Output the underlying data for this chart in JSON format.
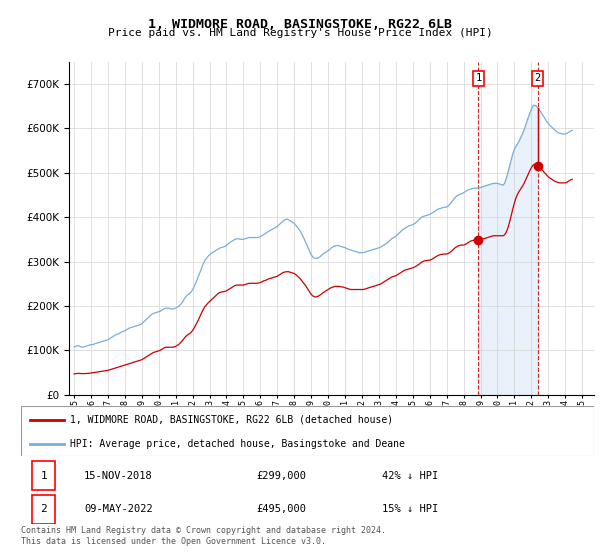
{
  "title": "1, WIDMORE ROAD, BASINGSTOKE, RG22 6LB",
  "subtitle": "Price paid vs. HM Land Registry's House Price Index (HPI)",
  "legend_entry1": "1, WIDMORE ROAD, BASINGSTOKE, RG22 6LB (detached house)",
  "legend_entry2": "HPI: Average price, detached house, Basingstoke and Deane",
  "footnote": "Contains HM Land Registry data © Crown copyright and database right 2024.\nThis data is licensed under the Open Government Licence v3.0.",
  "transaction1_date": "15-NOV-2018",
  "transaction1_price": "£299,000",
  "transaction1_hpi": "42% ↓ HPI",
  "transaction2_date": "09-MAY-2022",
  "transaction2_price": "£495,000",
  "transaction2_hpi": "15% ↓ HPI",
  "hpi_color": "#7aaddc",
  "price_color": "#cc0000",
  "shading_color": "#ddeeff",
  "background_color": "#ffffff",
  "ylim": [
    0,
    750000
  ],
  "yticks": [
    0,
    100000,
    200000,
    300000,
    400000,
    500000,
    600000,
    700000
  ],
  "transaction1_x": 2018.878,
  "transaction2_x": 2022.37,
  "hpi_monthly_dates": [
    1995.0,
    1995.083,
    1995.167,
    1995.25,
    1995.333,
    1995.417,
    1995.5,
    1995.583,
    1995.667,
    1995.75,
    1995.833,
    1995.917,
    1996.0,
    1996.083,
    1996.167,
    1996.25,
    1996.333,
    1996.417,
    1996.5,
    1996.583,
    1996.667,
    1996.75,
    1996.833,
    1996.917,
    1997.0,
    1997.083,
    1997.167,
    1997.25,
    1997.333,
    1997.417,
    1997.5,
    1997.583,
    1997.667,
    1997.75,
    1997.833,
    1997.917,
    1998.0,
    1998.083,
    1998.167,
    1998.25,
    1998.333,
    1998.417,
    1998.5,
    1998.583,
    1998.667,
    1998.75,
    1998.833,
    1998.917,
    1999.0,
    1999.083,
    1999.167,
    1999.25,
    1999.333,
    1999.417,
    1999.5,
    1999.583,
    1999.667,
    1999.75,
    1999.833,
    1999.917,
    2000.0,
    2000.083,
    2000.167,
    2000.25,
    2000.333,
    2000.417,
    2000.5,
    2000.583,
    2000.667,
    2000.75,
    2000.833,
    2000.917,
    2001.0,
    2001.083,
    2001.167,
    2001.25,
    2001.333,
    2001.417,
    2001.5,
    2001.583,
    2001.667,
    2001.75,
    2001.833,
    2001.917,
    2002.0,
    2002.083,
    2002.167,
    2002.25,
    2002.333,
    2002.417,
    2002.5,
    2002.583,
    2002.667,
    2002.75,
    2002.833,
    2002.917,
    2003.0,
    2003.083,
    2003.167,
    2003.25,
    2003.333,
    2003.417,
    2003.5,
    2003.583,
    2003.667,
    2003.75,
    2003.833,
    2003.917,
    2004.0,
    2004.083,
    2004.167,
    2004.25,
    2004.333,
    2004.417,
    2004.5,
    2004.583,
    2004.667,
    2004.75,
    2004.833,
    2004.917,
    2005.0,
    2005.083,
    2005.167,
    2005.25,
    2005.333,
    2005.417,
    2005.5,
    2005.583,
    2005.667,
    2005.75,
    2005.833,
    2005.917,
    2006.0,
    2006.083,
    2006.167,
    2006.25,
    2006.333,
    2006.417,
    2006.5,
    2006.583,
    2006.667,
    2006.75,
    2006.833,
    2006.917,
    2007.0,
    2007.083,
    2007.167,
    2007.25,
    2007.333,
    2007.417,
    2007.5,
    2007.583,
    2007.667,
    2007.75,
    2007.833,
    2007.917,
    2008.0,
    2008.083,
    2008.167,
    2008.25,
    2008.333,
    2008.417,
    2008.5,
    2008.583,
    2008.667,
    2008.75,
    2008.833,
    2008.917,
    2009.0,
    2009.083,
    2009.167,
    2009.25,
    2009.333,
    2009.417,
    2009.5,
    2009.583,
    2009.667,
    2009.75,
    2009.833,
    2009.917,
    2010.0,
    2010.083,
    2010.167,
    2010.25,
    2010.333,
    2010.417,
    2010.5,
    2010.583,
    2010.667,
    2010.75,
    2010.833,
    2010.917,
    2011.0,
    2011.083,
    2011.167,
    2011.25,
    2011.333,
    2011.417,
    2011.5,
    2011.583,
    2011.667,
    2011.75,
    2011.833,
    2011.917,
    2012.0,
    2012.083,
    2012.167,
    2012.25,
    2012.333,
    2012.417,
    2012.5,
    2012.583,
    2012.667,
    2012.75,
    2012.833,
    2012.917,
    2013.0,
    2013.083,
    2013.167,
    2013.25,
    2013.333,
    2013.417,
    2013.5,
    2013.583,
    2013.667,
    2013.75,
    2013.833,
    2013.917,
    2014.0,
    2014.083,
    2014.167,
    2014.25,
    2014.333,
    2014.417,
    2014.5,
    2014.583,
    2014.667,
    2014.75,
    2014.833,
    2014.917,
    2015.0,
    2015.083,
    2015.167,
    2015.25,
    2015.333,
    2015.417,
    2015.5,
    2015.583,
    2015.667,
    2015.75,
    2015.833,
    2015.917,
    2016.0,
    2016.083,
    2016.167,
    2016.25,
    2016.333,
    2016.417,
    2016.5,
    2016.583,
    2016.667,
    2016.75,
    2016.833,
    2016.917,
    2017.0,
    2017.083,
    2017.167,
    2017.25,
    2017.333,
    2017.417,
    2017.5,
    2017.583,
    2017.667,
    2017.75,
    2017.833,
    2017.917,
    2018.0,
    2018.083,
    2018.167,
    2018.25,
    2018.333,
    2018.417,
    2018.5,
    2018.583,
    2018.667,
    2018.75,
    2018.833,
    2018.917,
    2019.0,
    2019.083,
    2019.167,
    2019.25,
    2019.333,
    2019.417,
    2019.5,
    2019.583,
    2019.667,
    2019.75,
    2019.833,
    2019.917,
    2020.0,
    2020.083,
    2020.167,
    2020.25,
    2020.333,
    2020.417,
    2020.5,
    2020.583,
    2020.667,
    2020.75,
    2020.833,
    2020.917,
    2021.0,
    2021.083,
    2021.167,
    2021.25,
    2021.333,
    2021.417,
    2021.5,
    2021.583,
    2021.667,
    2021.75,
    2021.833,
    2021.917,
    2022.0,
    2022.083,
    2022.167,
    2022.25,
    2022.333,
    2022.417,
    2022.5,
    2022.583,
    2022.667,
    2022.75,
    2022.833,
    2022.917,
    2023.0,
    2023.083,
    2023.167,
    2023.25,
    2023.333,
    2023.417,
    2023.5,
    2023.583,
    2023.667,
    2023.75,
    2023.833,
    2023.917,
    2024.0,
    2024.083,
    2024.167,
    2024.25,
    2024.333,
    2024.417
  ],
  "hpi_monthly_values": [
    108000,
    109000,
    110000,
    111000,
    109000,
    108000,
    107000,
    108000,
    109000,
    110000,
    111000,
    112000,
    113000,
    113000,
    114000,
    115000,
    116000,
    117000,
    118000,
    119000,
    120000,
    121000,
    122000,
    123000,
    124000,
    126000,
    128000,
    130000,
    132000,
    134000,
    136000,
    137000,
    138000,
    140000,
    142000,
    143000,
    144000,
    146000,
    148000,
    150000,
    151000,
    152000,
    153000,
    154000,
    155000,
    156000,
    157000,
    158000,
    160000,
    163000,
    166000,
    169000,
    172000,
    175000,
    178000,
    181000,
    183000,
    184000,
    185000,
    186000,
    187000,
    188000,
    190000,
    192000,
    194000,
    195000,
    195000,
    195000,
    194000,
    193000,
    193000,
    194000,
    195000,
    197000,
    199000,
    202000,
    205000,
    210000,
    215000,
    220000,
    224000,
    226000,
    228000,
    232000,
    237000,
    243000,
    250000,
    258000,
    266000,
    274000,
    282000,
    291000,
    298000,
    304000,
    308000,
    312000,
    315000,
    318000,
    320000,
    322000,
    324000,
    326000,
    328000,
    330000,
    331000,
    332000,
    333000,
    334000,
    336000,
    339000,
    342000,
    344000,
    346000,
    348000,
    350000,
    351000,
    351000,
    351000,
    350000,
    350000,
    350000,
    351000,
    352000,
    353000,
    354000,
    354000,
    354000,
    354000,
    354000,
    354000,
    354000,
    355000,
    356000,
    358000,
    360000,
    362000,
    364000,
    366000,
    368000,
    370000,
    372000,
    374000,
    375000,
    377000,
    379000,
    382000,
    385000,
    388000,
    391000,
    393000,
    395000,
    395000,
    394000,
    392000,
    390000,
    388000,
    386000,
    382000,
    378000,
    374000,
    370000,
    364000,
    358000,
    351000,
    344000,
    337000,
    330000,
    322000,
    315000,
    311000,
    308000,
    307000,
    307000,
    308000,
    310000,
    313000,
    316000,
    318000,
    320000,
    322000,
    324000,
    327000,
    330000,
    332000,
    334000,
    335000,
    336000,
    336000,
    335000,
    334000,
    333000,
    332000,
    331000,
    330000,
    328000,
    327000,
    326000,
    325000,
    324000,
    323000,
    322000,
    321000,
    320000,
    320000,
    320000,
    320000,
    321000,
    322000,
    323000,
    324000,
    325000,
    326000,
    327000,
    328000,
    329000,
    330000,
    331000,
    332000,
    334000,
    336000,
    338000,
    340000,
    342000,
    345000,
    348000,
    351000,
    353000,
    355000,
    357000,
    360000,
    363000,
    366000,
    369000,
    372000,
    374000,
    376000,
    378000,
    380000,
    381000,
    382000,
    383000,
    385000,
    387000,
    390000,
    393000,
    396000,
    399000,
    401000,
    402000,
    403000,
    404000,
    405000,
    406000,
    408000,
    410000,
    412000,
    414000,
    416000,
    418000,
    419000,
    420000,
    421000,
    422000,
    422000,
    423000,
    425000,
    428000,
    432000,
    436000,
    440000,
    444000,
    447000,
    449000,
    451000,
    452000,
    453000,
    455000,
    457000,
    459000,
    461000,
    462000,
    463000,
    464000,
    465000,
    465000,
    465000,
    466000,
    466000,
    467000,
    468000,
    469000,
    470000,
    471000,
    472000,
    473000,
    474000,
    475000,
    476000,
    476000,
    476000,
    476000,
    475000,
    474000,
    473000,
    472000,
    476000,
    485000,
    495000,
    508000,
    520000,
    532000,
    544000,
    553000,
    559000,
    564000,
    569000,
    576000,
    583000,
    590000,
    598000,
    607000,
    617000,
    626000,
    635000,
    643000,
    649000,
    652000,
    651000,
    648000,
    644000,
    640000,
    635000,
    630000,
    625000,
    620000,
    615000,
    611000,
    607000,
    604000,
    601000,
    598000,
    595000,
    592000,
    590000,
    589000,
    588000,
    587000,
    587000,
    587000,
    588000,
    590000,
    592000,
    594000,
    595000
  ],
  "price_monthly_values": [
    47000,
    47500,
    48000,
    48200,
    48000,
    47800,
    47500,
    47600,
    47800,
    48000,
    48300,
    48600,
    49000,
    49500,
    50000,
    50500,
    51000,
    51500,
    52000,
    52500,
    53000,
    53500,
    54000,
    54500,
    55000,
    56000,
    57000,
    58000,
    59000,
    60000,
    61000,
    62000,
    63000,
    64000,
    65000,
    66000,
    67000,
    68000,
    69000,
    70000,
    71000,
    72000,
    73000,
    74000,
    75000,
    76000,
    77000,
    78000,
    79000,
    81000,
    83000,
    85000,
    87000,
    89000,
    91000,
    93000,
    95000,
    96000,
    97000,
    98000,
    99000,
    100000,
    102000,
    104000,
    106000,
    107000,
    107000,
    107000,
    107000,
    107000,
    107000,
    108000,
    109000,
    111000,
    113000,
    116000,
    119000,
    123000,
    127000,
    131000,
    134000,
    136000,
    138000,
    141000,
    145000,
    150000,
    156000,
    162000,
    168000,
    175000,
    182000,
    189000,
    195000,
    200000,
    203000,
    207000,
    210000,
    213000,
    216000,
    219000,
    222000,
    225000,
    228000,
    230000,
    231000,
    232000,
    232000,
    233000,
    234000,
    236000,
    238000,
    240000,
    242000,
    244000,
    246000,
    247000,
    247000,
    247000,
    247000,
    247000,
    247000,
    248000,
    249000,
    250000,
    251000,
    251000,
    251000,
    251000,
    251000,
    251000,
    251000,
    252000,
    253000,
    254000,
    256000,
    257000,
    258000,
    260000,
    261000,
    262000,
    263000,
    264000,
    265000,
    266000,
    267000,
    269000,
    271000,
    273000,
    275000,
    276000,
    277000,
    277000,
    277000,
    276000,
    275000,
    274000,
    273000,
    271000,
    268000,
    265000,
    262000,
    258000,
    254000,
    250000,
    246000,
    241000,
    236000,
    231000,
    226000,
    223000,
    221000,
    220000,
    221000,
    222000,
    224000,
    226000,
    229000,
    231000,
    233000,
    235000,
    237000,
    239000,
    241000,
    242000,
    243000,
    244000,
    244000,
    244000,
    244000,
    243000,
    243000,
    242000,
    241000,
    240000,
    239000,
    238000,
    237000,
    237000,
    237000,
    237000,
    237000,
    237000,
    237000,
    237000,
    237000,
    237000,
    238000,
    239000,
    240000,
    241000,
    242000,
    243000,
    244000,
    245000,
    246000,
    247000,
    248000,
    249000,
    251000,
    253000,
    255000,
    257000,
    259000,
    261000,
    263000,
    265000,
    266000,
    267000,
    268000,
    270000,
    272000,
    274000,
    276000,
    278000,
    280000,
    281000,
    282000,
    283000,
    284000,
    285000,
    286000,
    287000,
    289000,
    291000,
    293000,
    295000,
    298000,
    300000,
    301000,
    302000,
    302000,
    303000,
    303000,
    304000,
    306000,
    308000,
    310000,
    312000,
    314000,
    315000,
    316000,
    316000,
    317000,
    317000,
    317000,
    318000,
    320000,
    322000,
    325000,
    328000,
    331000,
    333000,
    335000,
    336000,
    337000,
    337000,
    337000,
    338000,
    340000,
    342000,
    344000,
    346000,
    347000,
    348000,
    348000,
    348000,
    349000,
    349000,
    349000,
    350000,
    351000,
    352000,
    353000,
    354000,
    355000,
    356000,
    357000,
    358000,
    358000,
    358000,
    358000,
    358000,
    358000,
    358000,
    358000,
    360000,
    365000,
    372000,
    382000,
    394000,
    407000,
    420000,
    432000,
    442000,
    450000,
    456000,
    461000,
    466000,
    471000,
    477000,
    484000,
    491000,
    498000,
    505000,
    511000,
    516000,
    519000,
    519000,
    517000,
    515000,
    512000,
    509000,
    505000,
    501000,
    498000,
    494000,
    491000,
    488000,
    486000,
    484000,
    482000,
    480000,
    479000,
    478000,
    477000,
    477000,
    477000,
    477000,
    477000,
    478000,
    480000,
    482000,
    484000,
    485000
  ]
}
